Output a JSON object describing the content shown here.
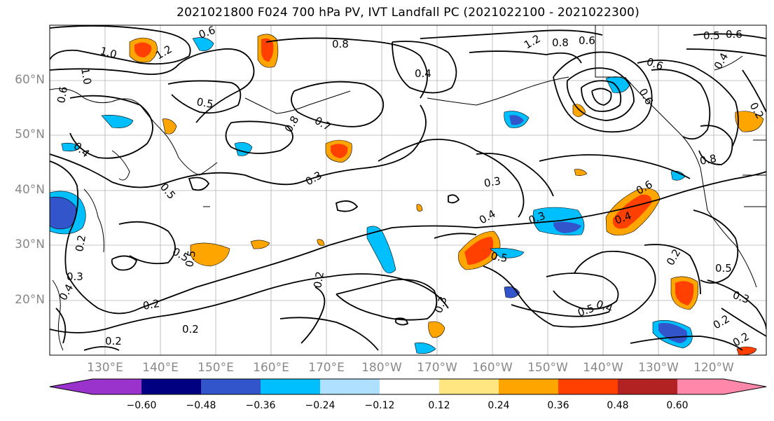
{
  "title": "2021021800 F024 700 hPa PV, IVT Landfall PC (2021022100 - 2021022300)",
  "lat_labels": [
    "60°N",
    "50°N",
    "40°N",
    "30°N",
    "20°N"
  ],
  "lon_labels": [
    "130°E",
    "140°E",
    "150°E",
    "160°E",
    "170°E",
    "180°W",
    "170°W",
    "160°W",
    "150°W",
    "140°W",
    "130°W",
    "120°W"
  ],
  "colorbar": {
    "colors": [
      "#9933cc",
      "#000080",
      "#3355cc",
      "#00bfff",
      "#b0e0ff",
      "#ffffff",
      "#ffe680",
      "#ffa500",
      "#ff4000",
      "#b22222",
      "#ff88aa"
    ],
    "ticks": [
      "−0.60",
      "−0.48",
      "−0.36",
      "−0.24",
      "−0.12",
      "0.12",
      "0.24",
      "0.36",
      "0.48",
      "0.60"
    ]
  },
  "contour_labels": [
    "0.6",
    "1.0",
    "1.2",
    "0.8",
    "0.4",
    "0.6",
    "1.2",
    "0.8",
    "0.6",
    "0.5",
    "0.6",
    "1.0",
    "0.5",
    "0.7",
    "0.8",
    "0.5",
    "0.4",
    "0.3",
    "0.3",
    "0.5",
    "0.4",
    "0.6",
    "0.4",
    "0.3",
    "0.5",
    "0.2",
    "0.6",
    "0.5",
    "0.3",
    "0.4",
    "0.2",
    "0.2",
    "0.2",
    "0.2",
    "0.5",
    "0.4",
    "0.2",
    "0.3",
    "0.2",
    "0.2",
    "0.5",
    "0.3",
    "0.8",
    "0.4",
    "0.6",
    "0.2"
  ]
}
